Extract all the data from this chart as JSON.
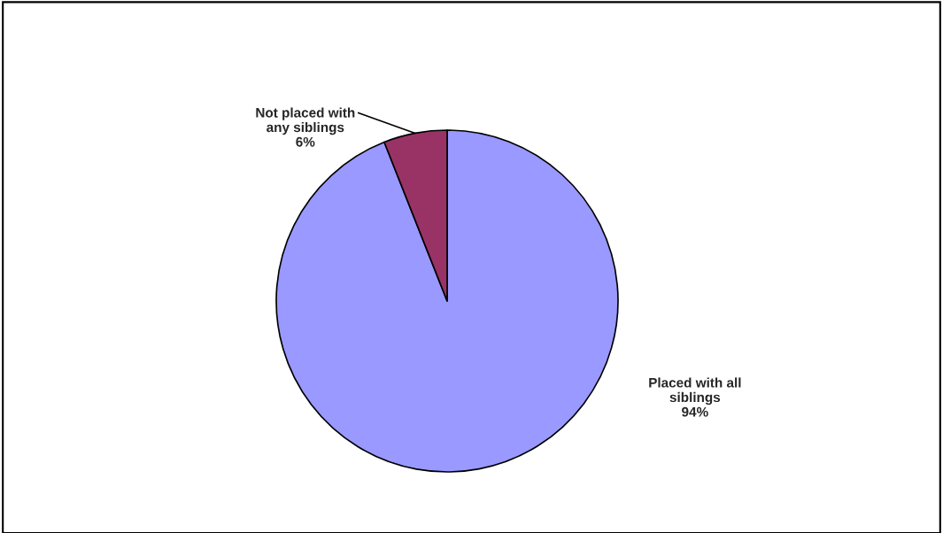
{
  "chart_data": {
    "type": "pie",
    "categories": [
      "Placed with all\nsiblings",
      "Not placed with\nany siblings"
    ],
    "values": [
      94,
      6
    ],
    "colors": [
      "#9999ff",
      "#993366"
    ],
    "value_labels": [
      "94%",
      "6%"
    ]
  }
}
